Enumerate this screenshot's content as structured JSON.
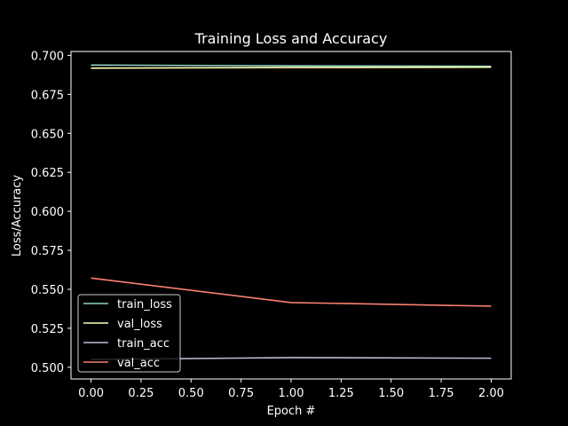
{
  "chart_data": {
    "type": "line",
    "title": "Training Loss and Accuracy",
    "xlabel": "Epoch #",
    "ylabel": "Loss/Accuracy",
    "x": [
      0,
      1,
      2
    ],
    "xlim": [
      -0.1,
      2.1
    ],
    "ylim": [
      0.4925,
      0.7025
    ],
    "xticks": [
      "0.00",
      "0.25",
      "0.50",
      "0.75",
      "1.00",
      "1.25",
      "1.50",
      "1.75",
      "2.00"
    ],
    "yticks": [
      "0.500",
      "0.525",
      "0.550",
      "0.575",
      "0.600",
      "0.625",
      "0.650",
      "0.675",
      "0.700"
    ],
    "grid": false,
    "legend_position": "lower-left",
    "series": [
      {
        "name": "train_loss",
        "color": "#8dd3c7",
        "values": [
          0.6938,
          0.6933,
          0.693
        ]
      },
      {
        "name": "val_loss",
        "color": "#ffffb3",
        "values": [
          0.6918,
          0.6922,
          0.6924
        ]
      },
      {
        "name": "train_acc",
        "color": "#bebada",
        "values": [
          0.505,
          0.5062,
          0.5058
        ]
      },
      {
        "name": "val_acc",
        "color": "#fb8072",
        "values": [
          0.5572,
          0.5415,
          0.5392
        ]
      }
    ]
  }
}
